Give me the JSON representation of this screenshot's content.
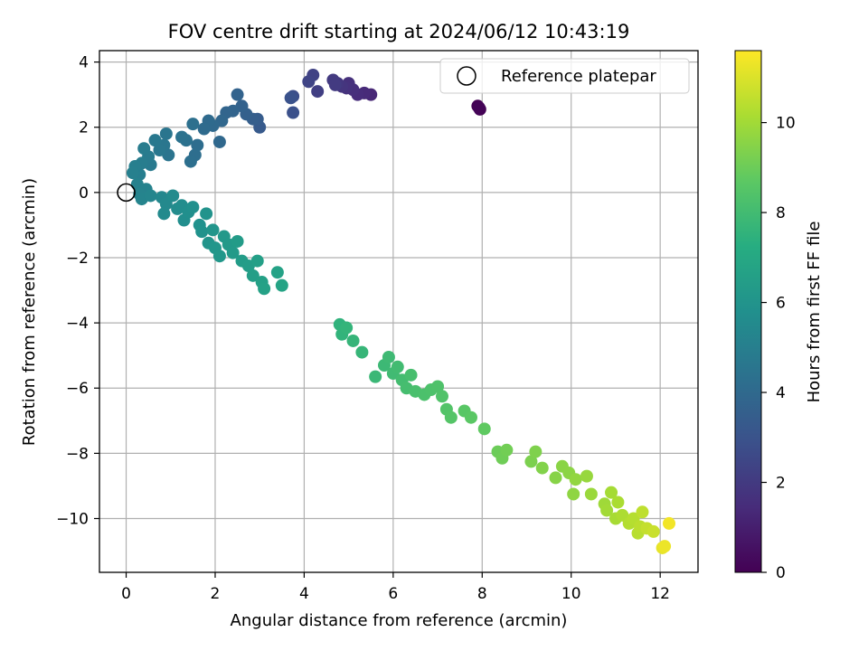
{
  "chart_data": {
    "type": "scatter",
    "title": "FOV centre drift starting at 2024/06/12 10:43:19",
    "xlabel": "Angular distance from reference (arcmin)",
    "ylabel": "Rotation from reference (arcmin)",
    "xlim": [
      -0.6,
      12.85
    ],
    "ylim": [
      -11.65,
      4.35
    ],
    "x_ticks": [
      0,
      2,
      4,
      6,
      8,
      10,
      12
    ],
    "y_ticks": [
      -10,
      -8,
      -6,
      -4,
      -2,
      0,
      2,
      4
    ],
    "x_tick_labels": [
      "0",
      "2",
      "4",
      "6",
      "8",
      "10",
      "12"
    ],
    "y_tick_labels": [
      "−10",
      "−8",
      "−6",
      "−4",
      "−2",
      "0",
      "2",
      "4"
    ],
    "grid": true,
    "legend": {
      "placement": "top-right",
      "entries": [
        "Reference platepar"
      ]
    },
    "reference_point": {
      "name": "Reference platepar",
      "x": 0,
      "y": 0
    },
    "colorbar": {
      "label": "Hours from first FF file",
      "colormap": "viridis",
      "range": [
        0,
        11.6
      ],
      "ticks": [
        0,
        2,
        4,
        6,
        8,
        10
      ],
      "tick_labels": [
        "0",
        "2",
        "4",
        "6",
        "8",
        "10"
      ]
    },
    "series": [
      {
        "value_columns": [
          "x",
          "y",
          "hours"
        ],
        "points": [
          [
            7.9,
            2.65,
            0.0
          ],
          [
            7.95,
            2.55,
            0.05
          ],
          [
            7.93,
            2.6,
            0.1
          ],
          [
            5.5,
            3.0,
            1.3
          ],
          [
            5.35,
            3.05,
            1.4
          ],
          [
            5.2,
            3.0,
            1.5
          ],
          [
            5.1,
            3.15,
            1.6
          ],
          [
            5.0,
            3.35,
            1.65
          ],
          [
            4.95,
            3.2,
            1.7
          ],
          [
            4.85,
            3.25,
            1.8
          ],
          [
            4.75,
            3.35,
            1.9
          ],
          [
            4.65,
            3.45,
            2.0
          ],
          [
            4.7,
            3.3,
            2.05
          ],
          [
            4.3,
            3.1,
            2.2
          ],
          [
            4.2,
            3.6,
            2.3
          ],
          [
            4.1,
            3.4,
            2.4
          ],
          [
            3.75,
            2.95,
            2.8
          ],
          [
            3.75,
            2.45,
            2.9
          ],
          [
            3.7,
            2.9,
            2.95
          ],
          [
            3.0,
            2.0,
            3.3
          ],
          [
            2.95,
            2.25,
            3.4
          ],
          [
            2.85,
            2.25,
            3.5
          ],
          [
            2.7,
            2.4,
            3.6
          ],
          [
            2.6,
            2.65,
            3.65
          ],
          [
            2.5,
            3.0,
            3.7
          ],
          [
            2.4,
            2.5,
            3.75
          ],
          [
            2.25,
            2.45,
            3.8
          ],
          [
            2.15,
            2.2,
            3.9
          ],
          [
            2.1,
            1.55,
            3.95
          ],
          [
            1.95,
            2.05,
            4.0
          ],
          [
            1.85,
            2.2,
            4.05
          ],
          [
            1.75,
            1.95,
            4.1
          ],
          [
            1.6,
            1.45,
            4.15
          ],
          [
            1.55,
            1.15,
            4.2
          ],
          [
            1.45,
            0.95,
            4.25
          ],
          [
            1.5,
            2.1,
            4.3
          ],
          [
            1.35,
            1.6,
            4.35
          ],
          [
            1.25,
            1.7,
            4.4
          ],
          [
            0.95,
            1.15,
            4.5
          ],
          [
            0.9,
            1.8,
            4.55
          ],
          [
            0.85,
            1.45,
            4.6
          ],
          [
            0.75,
            1.3,
            4.65
          ],
          [
            0.65,
            1.6,
            4.7
          ],
          [
            0.55,
            0.85,
            4.75
          ],
          [
            0.5,
            1.1,
            4.8
          ],
          [
            0.4,
            1.35,
            4.85
          ],
          [
            0.35,
            0.9,
            4.9
          ],
          [
            0.3,
            0.55,
            4.95
          ],
          [
            0.2,
            0.8,
            5.0
          ],
          [
            0.15,
            0.6,
            5.05
          ],
          [
            0.25,
            0.25,
            5.1
          ],
          [
            0.45,
            0.1,
            5.15
          ],
          [
            0.3,
            -0.05,
            5.2
          ],
          [
            0.35,
            -0.2,
            5.25
          ],
          [
            0.55,
            -0.1,
            5.3
          ],
          [
            0.8,
            -0.15,
            5.4
          ],
          [
            0.9,
            -0.35,
            5.45
          ],
          [
            0.85,
            -0.65,
            5.5
          ],
          [
            1.05,
            -0.1,
            5.55
          ],
          [
            1.15,
            -0.5,
            5.6
          ],
          [
            1.25,
            -0.4,
            5.65
          ],
          [
            1.3,
            -0.85,
            5.7
          ],
          [
            1.4,
            -0.6,
            5.75
          ],
          [
            1.5,
            -0.45,
            5.8
          ],
          [
            1.65,
            -1.0,
            5.85
          ],
          [
            1.7,
            -1.2,
            5.9
          ],
          [
            1.8,
            -0.65,
            5.95
          ],
          [
            1.85,
            -1.55,
            6.0
          ],
          [
            1.95,
            -1.15,
            6.05
          ],
          [
            2.0,
            -1.7,
            6.1
          ],
          [
            2.1,
            -1.95,
            6.15
          ],
          [
            2.2,
            -1.35,
            6.2
          ],
          [
            2.3,
            -1.6,
            6.25
          ],
          [
            2.4,
            -1.85,
            6.3
          ],
          [
            2.5,
            -1.5,
            6.35
          ],
          [
            2.6,
            -2.1,
            6.4
          ],
          [
            2.75,
            -2.25,
            6.45
          ],
          [
            2.85,
            -2.55,
            6.5
          ],
          [
            2.95,
            -2.1,
            6.55
          ],
          [
            3.05,
            -2.75,
            6.6
          ],
          [
            3.1,
            -2.95,
            6.65
          ],
          [
            3.4,
            -2.45,
            6.7
          ],
          [
            3.5,
            -2.85,
            6.75
          ],
          [
            4.8,
            -4.05,
            7.5
          ],
          [
            4.85,
            -4.35,
            7.55
          ],
          [
            4.95,
            -4.15,
            7.6
          ],
          [
            5.1,
            -4.55,
            7.65
          ],
          [
            5.3,
            -4.9,
            7.7
          ],
          [
            5.6,
            -5.65,
            7.8
          ],
          [
            5.8,
            -5.3,
            7.85
          ],
          [
            5.9,
            -5.05,
            7.9
          ],
          [
            6.0,
            -5.55,
            7.95
          ],
          [
            6.1,
            -5.35,
            8.0
          ],
          [
            6.2,
            -5.75,
            8.05
          ],
          [
            6.3,
            -6.0,
            8.1
          ],
          [
            6.4,
            -5.6,
            8.15
          ],
          [
            6.5,
            -6.1,
            8.2
          ],
          [
            6.7,
            -6.2,
            8.25
          ],
          [
            6.85,
            -6.05,
            8.3
          ],
          [
            7.0,
            -5.95,
            8.35
          ],
          [
            7.1,
            -6.25,
            8.4
          ],
          [
            7.2,
            -6.65,
            8.45
          ],
          [
            7.3,
            -6.9,
            8.5
          ],
          [
            7.6,
            -6.7,
            8.6
          ],
          [
            7.75,
            -6.9,
            8.65
          ],
          [
            8.05,
            -7.25,
            8.75
          ],
          [
            8.35,
            -7.95,
            9.0
          ],
          [
            8.45,
            -8.15,
            9.05
          ],
          [
            8.55,
            -7.9,
            9.1
          ],
          [
            9.1,
            -8.25,
            9.3
          ],
          [
            9.2,
            -7.95,
            9.35
          ],
          [
            9.35,
            -8.45,
            9.4
          ],
          [
            9.65,
            -8.75,
            9.5
          ],
          [
            9.8,
            -8.4,
            9.55
          ],
          [
            9.95,
            -8.6,
            9.6
          ],
          [
            10.05,
            -9.25,
            9.65
          ],
          [
            10.1,
            -8.8,
            9.7
          ],
          [
            10.35,
            -8.7,
            9.8
          ],
          [
            10.45,
            -9.25,
            9.85
          ],
          [
            10.75,
            -9.55,
            9.95
          ],
          [
            10.8,
            -9.75,
            10.0
          ],
          [
            10.9,
            -9.2,
            10.05
          ],
          [
            11.0,
            -10.0,
            10.1
          ],
          [
            11.05,
            -9.5,
            10.15
          ],
          [
            11.15,
            -9.9,
            10.2
          ],
          [
            11.3,
            -10.15,
            10.3
          ],
          [
            11.4,
            -10.0,
            10.35
          ],
          [
            11.5,
            -10.45,
            10.4
          ],
          [
            11.55,
            -10.25,
            10.45
          ],
          [
            11.6,
            -9.8,
            10.5
          ],
          [
            11.7,
            -10.3,
            10.6
          ],
          [
            11.85,
            -10.4,
            10.7
          ],
          [
            12.05,
            -10.9,
            11.2
          ],
          [
            12.1,
            -10.85,
            11.3
          ],
          [
            12.2,
            -10.15,
            11.4
          ]
        ]
      }
    ]
  }
}
